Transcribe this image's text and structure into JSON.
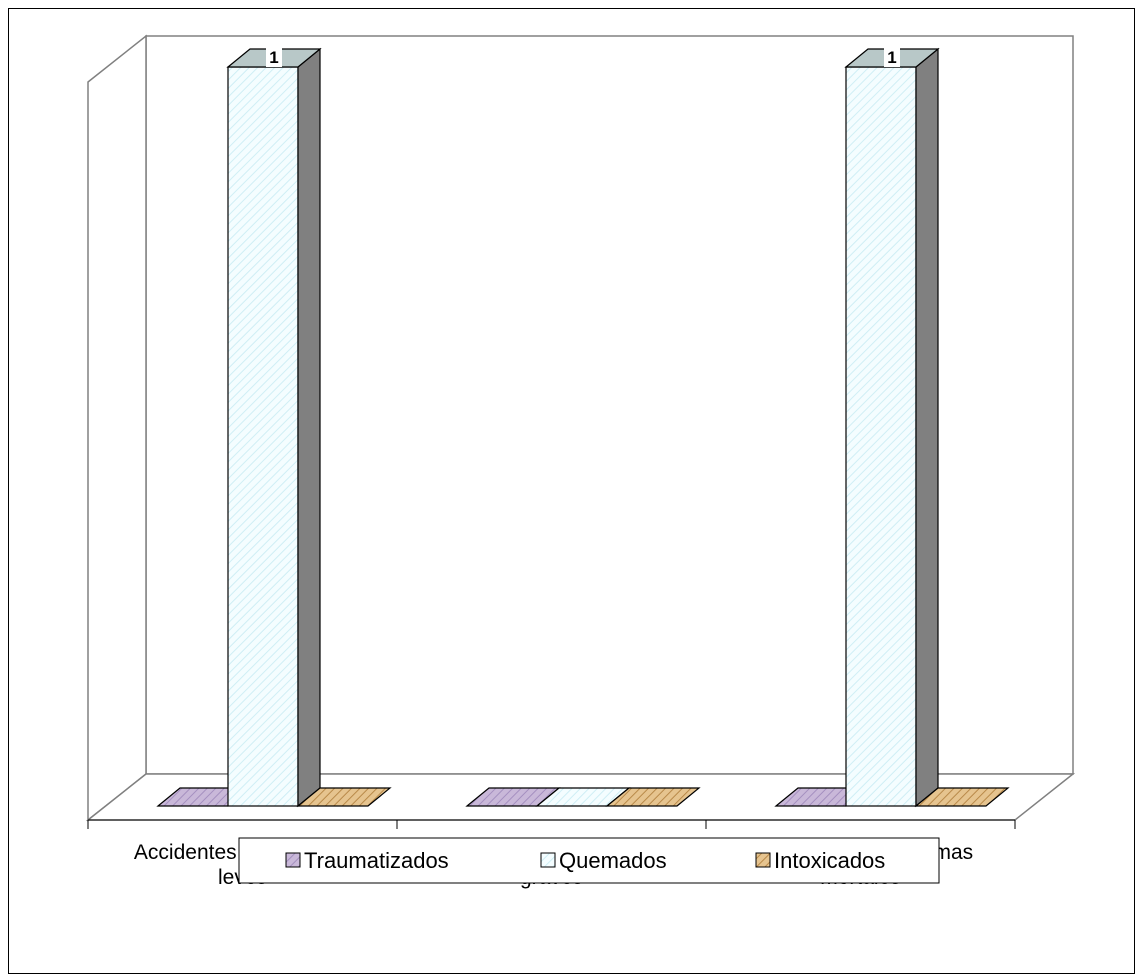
{
  "chart_data": {
    "type": "bar",
    "style": "3d-clustered-column",
    "categories": [
      [
        "Accidentes con heridos",
        "leves"
      ],
      [
        "Accidentes con heridos",
        "graves"
      ],
      [
        "Accidentes con víctimas",
        "mortales"
      ]
    ],
    "series": [
      {
        "name": "Traumatizados",
        "values": [
          0,
          0,
          0
        ],
        "color": "#c9b8d9",
        "pattern": "diagonal-hatch"
      },
      {
        "name": "Quemados",
        "values": [
          1,
          0,
          1
        ],
        "color": "#e8fbff",
        "pattern": "diagonal-hatch"
      },
      {
        "name": "Intoxicados",
        "values": [
          0,
          0,
          0
        ],
        "color": "#e6c48f",
        "pattern": "diagonal-hatch"
      }
    ],
    "data_labels": [
      {
        "series": "Quemados",
        "category_index": 0,
        "text": "1"
      },
      {
        "series": "Quemados",
        "category_index": 2,
        "text": "1"
      }
    ],
    "ylim": [
      0,
      1
    ],
    "grid": false,
    "legend": "bottom"
  }
}
